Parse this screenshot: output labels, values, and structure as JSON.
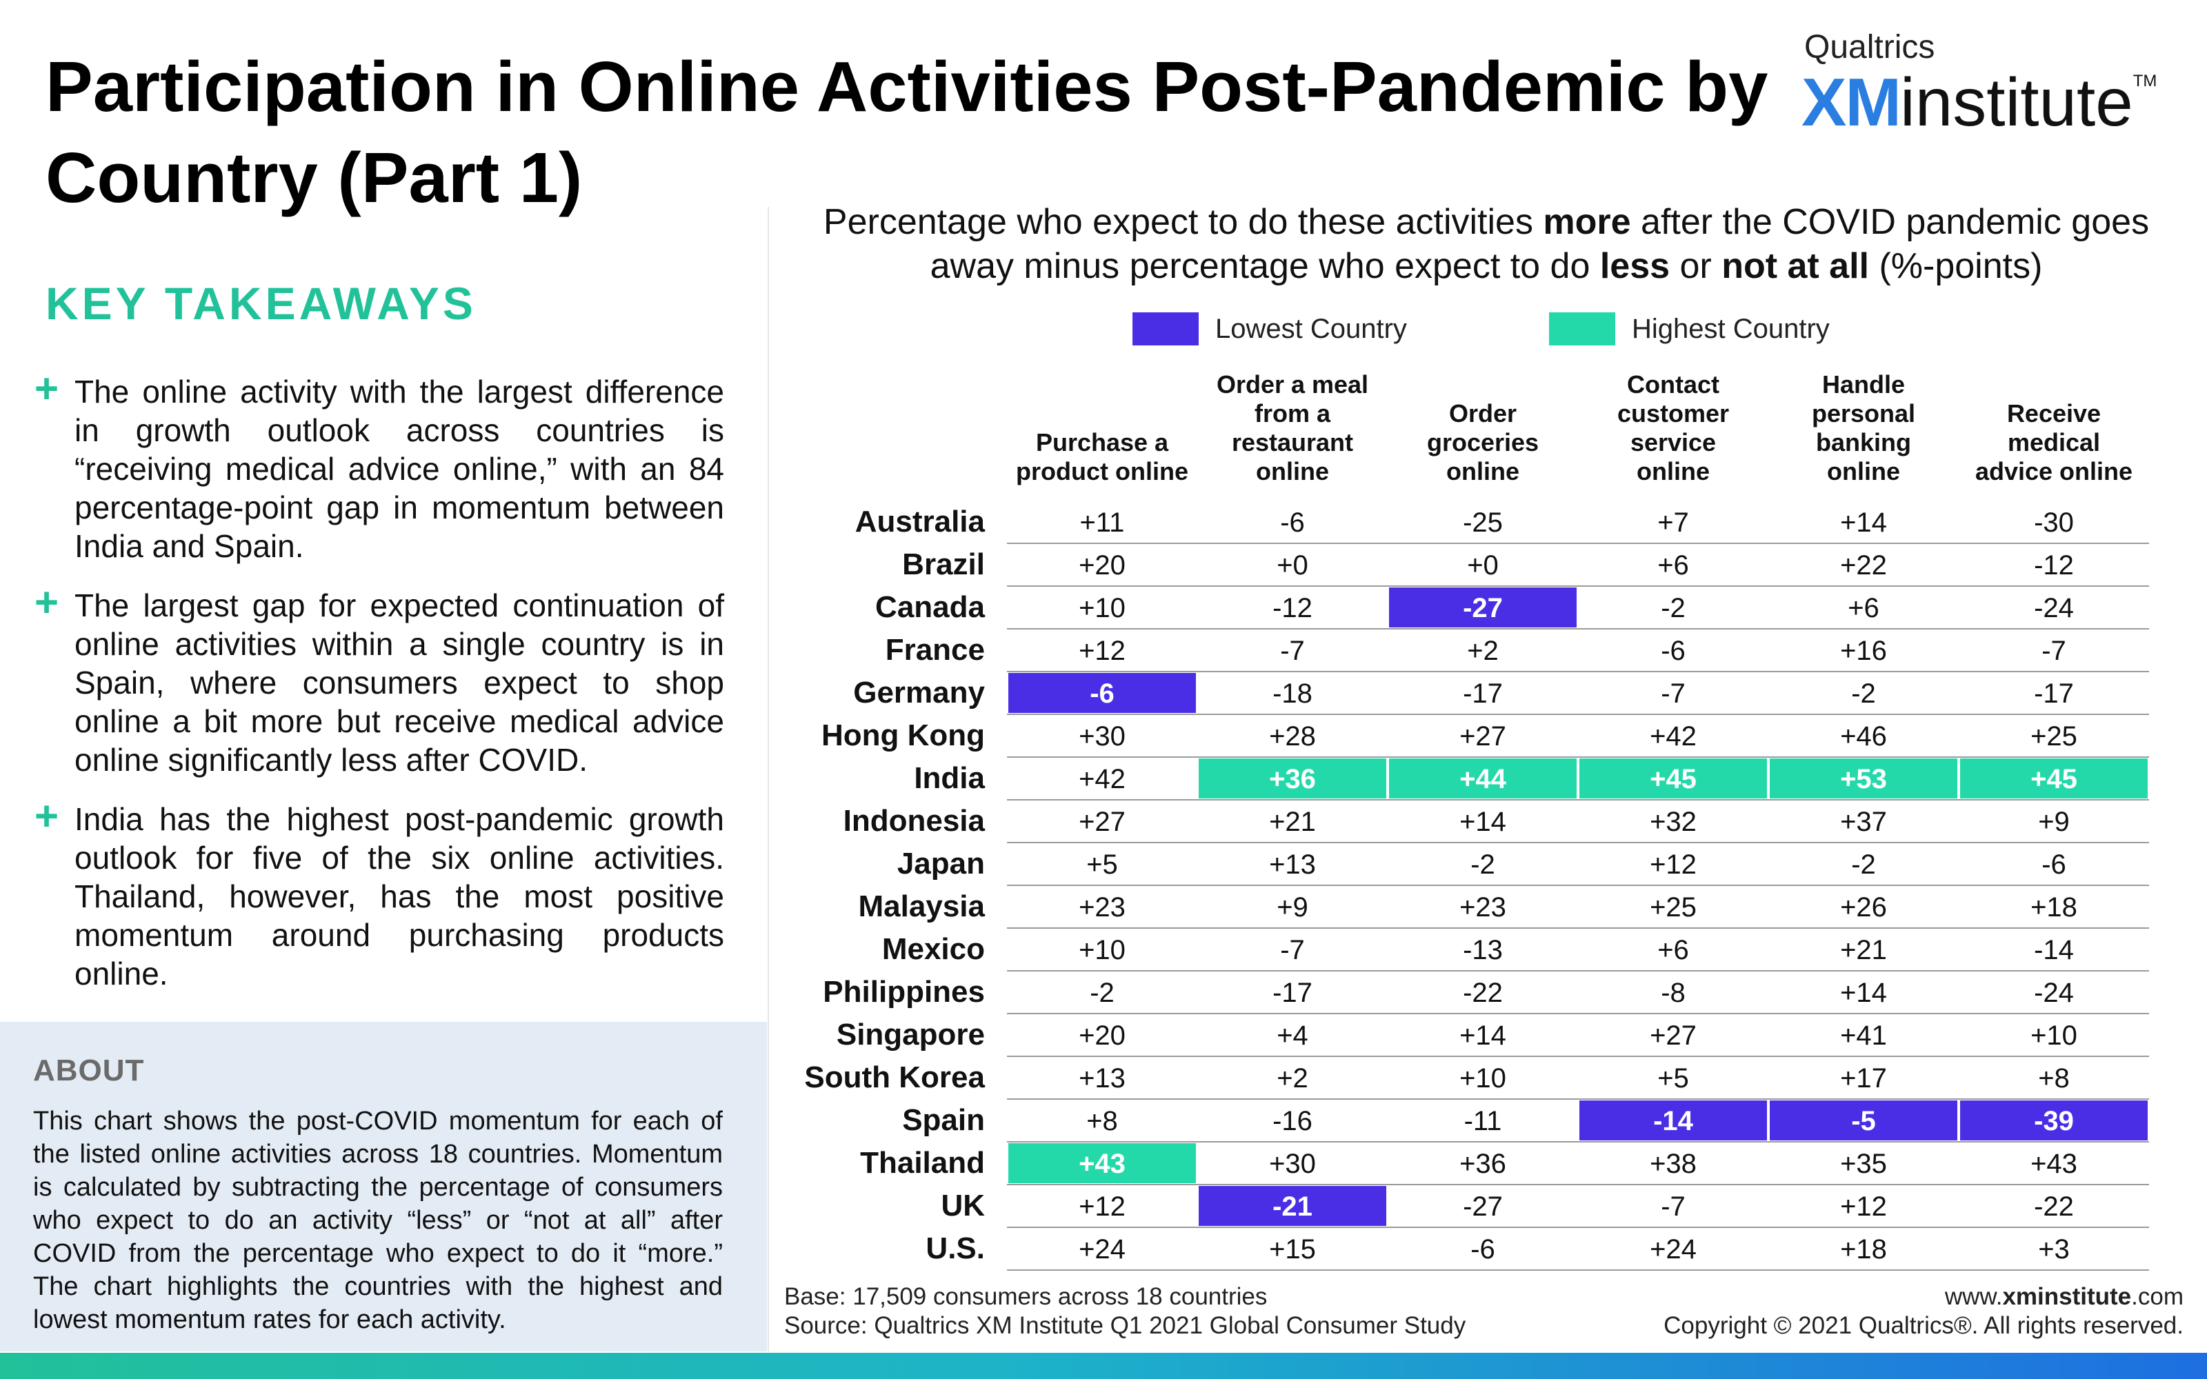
{
  "title": "Participation in Online Activities Post-Pandemic by Country (Part 1)",
  "brand": {
    "top": "Qualtrics",
    "xm": "XM",
    "institute": "institute",
    "tm": "TM"
  },
  "key_takeaways": {
    "heading": "KEY TAKEAWAYS",
    "items": [
      "The online activity with the largest difference in growth outlook across countries is “receiving medical advice online,” with an 84 percentage-point gap in momentum between India and Spain.",
      "The largest gap for expected continuation of online activities within a single country is in Spain, where consumers expect to shop online a bit more but receive medical advice online significantly less after COVID.",
      "India has the highest post-pandemic growth outlook for five of the six online activities. Thailand, however, has the most positive momentum around purchasing products online."
    ]
  },
  "about": {
    "title": "ABOUT",
    "body": "This chart shows the post-COVID momentum for each of the listed online activities across 18 countries. Momentum is calculated by subtracting the percentage of consumers who expect to do an activity “less” or “not at all” after COVID from the percentage who expect to do it “more.” The chart highlights the countries with the highest and lowest momentum rates for each activity."
  },
  "subtitle": {
    "part1": "Percentage who expect to do these activities ",
    "bold1": "more",
    "part2": " after the COVID pandemic goes away minus percentage who expect to do ",
    "bold2": "less",
    "part3": " or ",
    "bold3": "not at all",
    "part4": " (%-points)"
  },
  "legend": {
    "lowest": "Lowest Country",
    "highest": "Highest Country"
  },
  "colors": {
    "lowest": "#4a2ee6",
    "highest": "#24d9a9",
    "rule": "#9a9a9a"
  },
  "chart_data": {
    "type": "table",
    "columns": [
      "Purchase a product online",
      "Order a meal from a restaurant online",
      "Order groceries online",
      "Contact customer service online",
      "Handle personal banking online",
      "Receive medical advice online"
    ],
    "column_labels": [
      [
        "Purchase a",
        "product online"
      ],
      [
        "Order a meal",
        "from a",
        "restaurant",
        "online"
      ],
      [
        "Order",
        "groceries",
        "online"
      ],
      [
        "Contact",
        "customer",
        "service",
        "online"
      ],
      [
        "Handle",
        "personal",
        "banking",
        "online"
      ],
      [
        "Receive",
        "medical",
        "advice online"
      ]
    ],
    "rows": [
      {
        "country": "Australia",
        "values": [
          "+11",
          "-6",
          "-25",
          "+7",
          "+14",
          "-30"
        ],
        "highlight": [
          null,
          null,
          null,
          null,
          null,
          null
        ]
      },
      {
        "country": "Brazil",
        "values": [
          "+20",
          "+0",
          "+0",
          "+6",
          "+22",
          "-12"
        ],
        "highlight": [
          null,
          null,
          null,
          null,
          null,
          null
        ]
      },
      {
        "country": "Canada",
        "values": [
          "+10",
          "-12",
          "-27",
          "-2",
          "+6",
          "-24"
        ],
        "highlight": [
          null,
          null,
          "lowest",
          null,
          null,
          null
        ]
      },
      {
        "country": "France",
        "values": [
          "+12",
          "-7",
          "+2",
          "-6",
          "+16",
          "-7"
        ],
        "highlight": [
          null,
          null,
          null,
          null,
          null,
          null
        ]
      },
      {
        "country": "Germany",
        "values": [
          "-6",
          "-18",
          "-17",
          "-7",
          "-2",
          "-17"
        ],
        "highlight": [
          "lowest",
          null,
          null,
          null,
          null,
          null
        ]
      },
      {
        "country": "Hong Kong",
        "values": [
          "+30",
          "+28",
          "+27",
          "+42",
          "+46",
          "+25"
        ],
        "highlight": [
          null,
          null,
          null,
          null,
          null,
          null
        ]
      },
      {
        "country": "India",
        "values": [
          "+42",
          "+36",
          "+44",
          "+45",
          "+53",
          "+45"
        ],
        "highlight": [
          null,
          "highest",
          "highest",
          "highest",
          "highest",
          "highest"
        ]
      },
      {
        "country": "Indonesia",
        "values": [
          "+27",
          "+21",
          "+14",
          "+32",
          "+37",
          "+9"
        ],
        "highlight": [
          null,
          null,
          null,
          null,
          null,
          null
        ]
      },
      {
        "country": "Japan",
        "values": [
          "+5",
          "+13",
          "-2",
          "+12",
          "-2",
          "-6"
        ],
        "highlight": [
          null,
          null,
          null,
          null,
          null,
          null
        ]
      },
      {
        "country": "Malaysia",
        "values": [
          "+23",
          "+9",
          "+23",
          "+25",
          "+26",
          "+18"
        ],
        "highlight": [
          null,
          null,
          null,
          null,
          null,
          null
        ]
      },
      {
        "country": "Mexico",
        "values": [
          "+10",
          "-7",
          "-13",
          "+6",
          "+21",
          "-14"
        ],
        "highlight": [
          null,
          null,
          null,
          null,
          null,
          null
        ]
      },
      {
        "country": "Philippines",
        "values": [
          "-2",
          "-17",
          "-22",
          "-8",
          "+14",
          "-24"
        ],
        "highlight": [
          null,
          null,
          null,
          null,
          null,
          null
        ]
      },
      {
        "country": "Singapore",
        "values": [
          "+20",
          "+4",
          "+14",
          "+27",
          "+41",
          "+10"
        ],
        "highlight": [
          null,
          null,
          null,
          null,
          null,
          null
        ]
      },
      {
        "country": "South Korea",
        "values": [
          "+13",
          "+2",
          "+10",
          "+5",
          "+17",
          "+8"
        ],
        "highlight": [
          null,
          null,
          null,
          null,
          null,
          null
        ]
      },
      {
        "country": "Spain",
        "values": [
          "+8",
          "-16",
          "-11",
          "-14",
          "-5",
          "-39"
        ],
        "highlight": [
          null,
          null,
          null,
          "lowest",
          "lowest",
          "lowest"
        ]
      },
      {
        "country": "Thailand",
        "values": [
          "+43",
          "+30",
          "+36",
          "+38",
          "+35",
          "+43"
        ],
        "highlight": [
          "highest",
          null,
          null,
          null,
          null,
          null
        ]
      },
      {
        "country": "UK",
        "values": [
          "+12",
          "-21",
          "-27",
          "-7",
          "+12",
          "-22"
        ],
        "highlight": [
          null,
          "lowest",
          null,
          null,
          null,
          null
        ]
      },
      {
        "country": "U.S.",
        "values": [
          "+24",
          "+15",
          "-6",
          "+24",
          "+18",
          "+3"
        ],
        "highlight": [
          null,
          null,
          null,
          null,
          null,
          null
        ]
      }
    ]
  },
  "footer": {
    "base": "Base: 17,509 consumers across 18 countries",
    "source": "Source: Qualtrics XM Institute Q1 2021 Global Consumer Study",
    "url_pre": "www.",
    "url_bold": "xminstitute",
    "url_post": ".com",
    "copyright": "Copyright © 2021 Qualtrics®. All rights reserved."
  }
}
